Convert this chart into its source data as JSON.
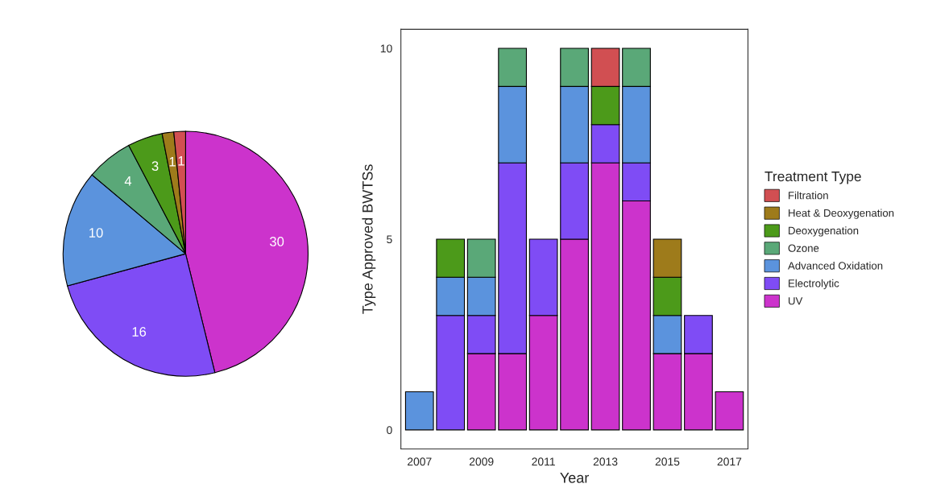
{
  "chart_data": [
    {
      "type": "pie",
      "categories": [
        null,
        null,
        null,
        null,
        null,
        null,
        null
      ],
      "values": [
        30,
        16,
        10,
        4,
        3,
        1,
        1
      ],
      "colors": [
        "#cc33cc",
        "#7f4cf5",
        "#5b93dd",
        "#5aa878",
        "#4c9a1a",
        "#9e7b1b",
        "#d14f52"
      ],
      "data_labels": true,
      "legend": false
    },
    {
      "type": "bar",
      "stacked": true,
      "x": [
        2007,
        2008,
        2009,
        2010,
        2011,
        2012,
        2013,
        2014,
        2015,
        2016,
        2017
      ],
      "series": [
        {
          "name": "UV",
          "color": "#cc33cc",
          "values": [
            0,
            0,
            2,
            2,
            3,
            5,
            7,
            6,
            2,
            2,
            1
          ]
        },
        {
          "name": "Electrolytic",
          "color": "#7f4cf5",
          "values": [
            0,
            3,
            1,
            5,
            2,
            2,
            1,
            1,
            0,
            1,
            0
          ]
        },
        {
          "name": "Advanced Oxidation",
          "color": "#5b93dd",
          "values": [
            1,
            1,
            1,
            2,
            0,
            2,
            0,
            2,
            1,
            0,
            0
          ]
        },
        {
          "name": "Ozone",
          "color": "#5aa878",
          "values": [
            0,
            0,
            1,
            1,
            0,
            1,
            0,
            1,
            0,
            0,
            0
          ]
        },
        {
          "name": "Deoxygenation",
          "color": "#4c9a1a",
          "values": [
            0,
            1,
            0,
            0,
            0,
            0,
            1,
            0,
            1,
            0,
            0
          ]
        },
        {
          "name": "Heat & Deoxygenation",
          "color": "#9e7b1b",
          "values": [
            0,
            0,
            0,
            0,
            0,
            0,
            0,
            0,
            1,
            0,
            0
          ]
        },
        {
          "name": "Filtration",
          "color": "#d14f52",
          "values": [
            0,
            0,
            0,
            0,
            0,
            0,
            1,
            0,
            0,
            0,
            0
          ]
        }
      ],
      "xlabel": "Year",
      "ylabel": "Type Approved BWTSs",
      "legend_title": "Treatment Type",
      "legend": "right",
      "xlim": [
        2006.4,
        2017.6
      ],
      "xticks": [
        2007,
        2009,
        2011,
        2013,
        2015,
        2017
      ],
      "ylim": [
        -0.5,
        10.5
      ],
      "yticks": [
        0,
        5,
        10
      ],
      "grid": false
    }
  ]
}
